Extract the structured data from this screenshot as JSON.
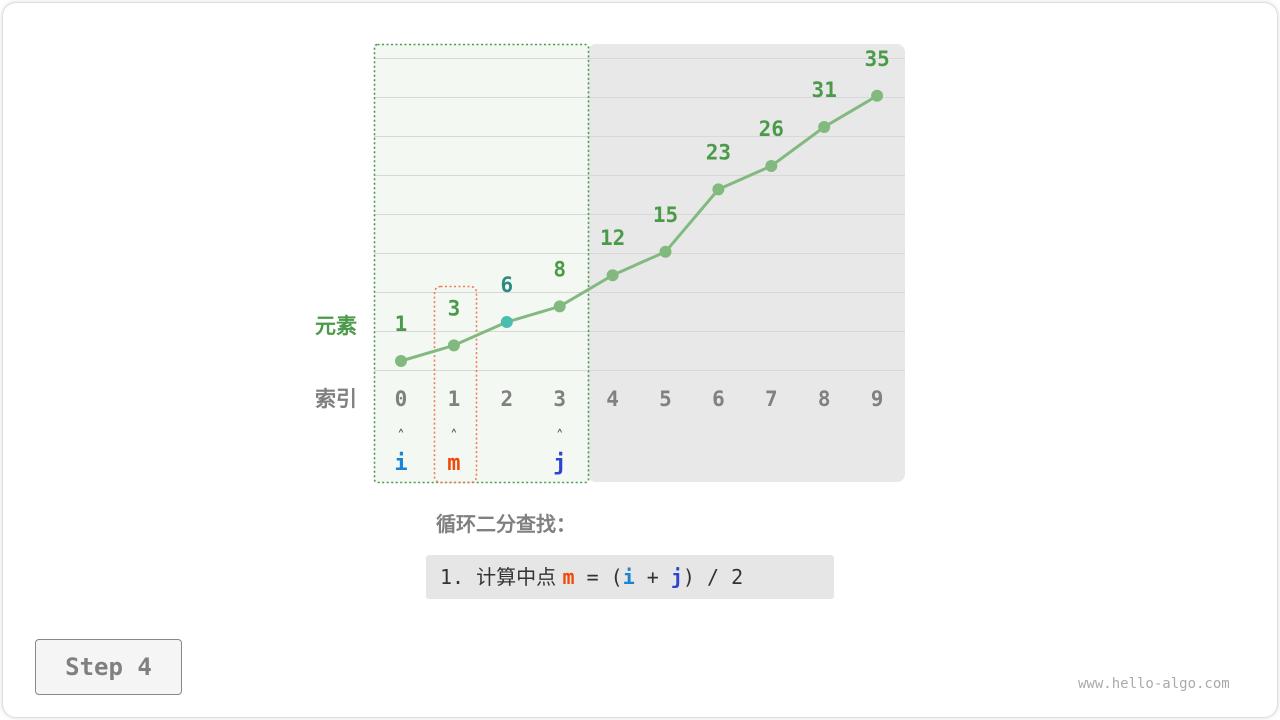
{
  "labels": {
    "elements": "元素",
    "index": "索引"
  },
  "array": [
    1,
    3,
    6,
    8,
    12,
    15,
    23,
    26,
    31,
    35
  ],
  "indices": [
    "0",
    "1",
    "2",
    "3",
    "4",
    "5",
    "6",
    "7",
    "8",
    "9"
  ],
  "pointers": {
    "i": {
      "label": "i",
      "index": 0,
      "color": "#1a84d4"
    },
    "m": {
      "label": "m",
      "index": 1,
      "color": "#f04a0b"
    },
    "j": {
      "label": "j",
      "index": 3,
      "color": "#2a44d0"
    }
  },
  "pointer_arrow": "˄",
  "highlight_index": 2,
  "search_range": [
    0,
    3
  ],
  "colors": {
    "line": "#82b97f",
    "value_text": "#4a9a4a",
    "highlight": "#4bbcb0",
    "highlight_text": "#2e8a80",
    "range_bg": "#f3f8f3",
    "excluded_bg": "#e8e8e8",
    "mid_box": "#f47c50"
  },
  "title": "循环二分查找：",
  "code": {
    "num": "1. ",
    "text": "计算中点 ",
    "m": "m",
    "eq": " = (",
    "i": "i",
    "plus": " + ",
    "j": "j",
    "rest": ") / 2"
  },
  "step_label": "Step 4",
  "watermark": "www.hello-algo.com"
}
